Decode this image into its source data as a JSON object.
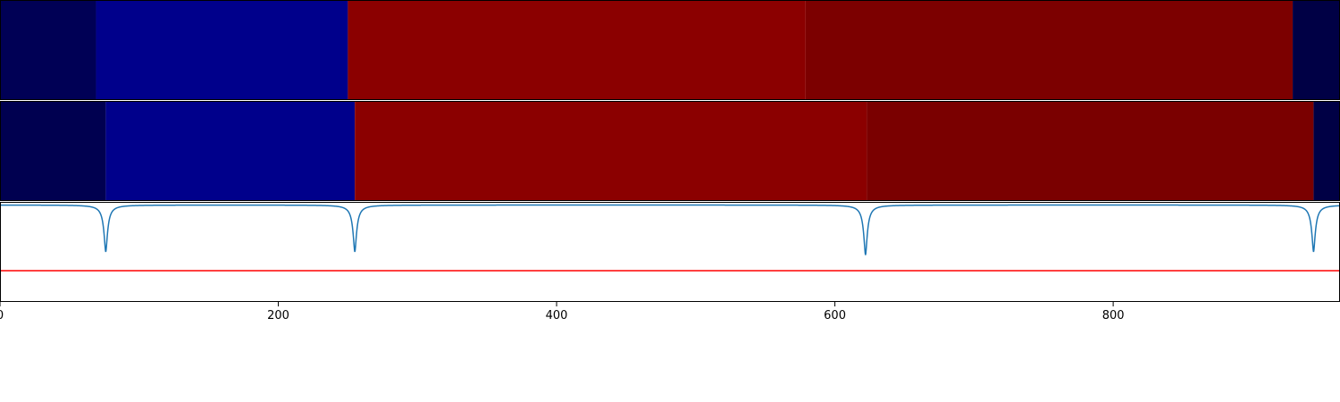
{
  "chart_data": [
    {
      "type": "heatmap",
      "title": "",
      "xlim": [
        0,
        963
      ],
      "segments": [
        {
          "start": 0,
          "end": 69,
          "color": "#000055"
        },
        {
          "start": 69,
          "end": 250,
          "color": "#00008b"
        },
        {
          "start": 250,
          "end": 579,
          "color": "#8b0000"
        },
        {
          "start": 579,
          "end": 929,
          "color": "#7c0000"
        },
        {
          "start": 929,
          "end": 963,
          "color": "#000045"
        }
      ]
    },
    {
      "type": "heatmap",
      "title": "",
      "xlim": [
        0,
        963
      ],
      "segments": [
        {
          "start": 0,
          "end": 76,
          "color": "#000050"
        },
        {
          "start": 76,
          "end": 255,
          "color": "#00008b"
        },
        {
          "start": 255,
          "end": 623,
          "color": "#8b0000"
        },
        {
          "start": 623,
          "end": 944,
          "color": "#7a0000"
        },
        {
          "start": 944,
          "end": 963,
          "color": "#000045"
        }
      ]
    },
    {
      "type": "line",
      "title": "",
      "xlabel": "",
      "ylabel": "",
      "xlim": [
        0,
        963
      ],
      "ylim": [
        -0.62,
        0.02
      ],
      "grid": false,
      "xticks": [
        0,
        200,
        400,
        600,
        800
      ],
      "xtick_labels": [
        "0",
        "200",
        "400",
        "600",
        "800"
      ],
      "threshold": {
        "y": -0.42,
        "color": "#ff0000"
      },
      "series": [
        {
          "color": "#1f77b4",
          "dips": [
            {
              "center": 76,
              "depth": 0.3
            },
            {
              "center": 255,
              "depth": 0.3
            },
            {
              "center": 622,
              "depth": 0.32
            },
            {
              "center": 944,
              "depth": 0.3
            }
          ]
        }
      ]
    }
  ]
}
